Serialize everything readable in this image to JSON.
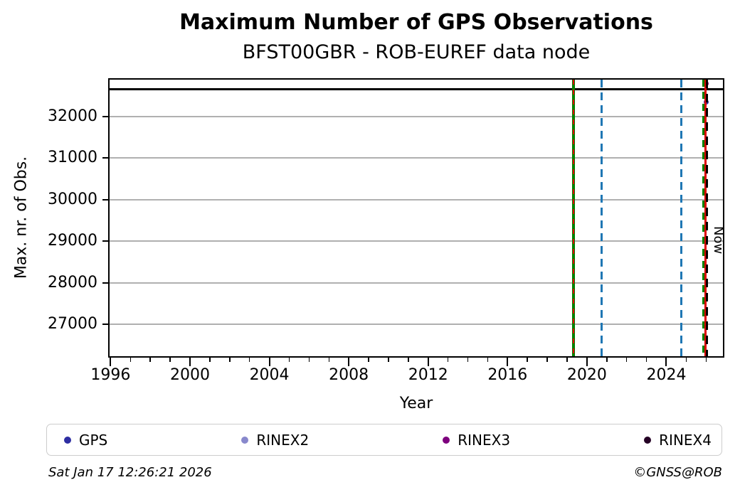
{
  "title": "Maximum Number of GPS Observations",
  "subtitle": "BFST00GBR - ROB-EUREF data node",
  "footer": {
    "timestamp": "Sat Jan 17 12:26:21 2026",
    "credit": "©GNSS@ROB"
  },
  "legend": {
    "items": [
      {
        "label": "GPS",
        "color": "#2e2ea2"
      },
      {
        "label": "RINEX2",
        "color": "#8888cc"
      },
      {
        "label": "RINEX3",
        "color": "#7d007d"
      },
      {
        "label": "RINEX4",
        "color": "#250025"
      }
    ]
  },
  "chart_data": {
    "type": "scatter",
    "title": "Maximum Number of GPS Observations",
    "subtitle": "BFST00GBR - ROB-EUREF data node",
    "xlabel": "Year",
    "ylabel": "Max. nr. of Obs.",
    "xlim": [
      1995.95,
      2026.85
    ],
    "ylim": [
      26240,
      32880
    ],
    "x_major_ticks": [
      1996,
      2000,
      2004,
      2008,
      2012,
      2016,
      2020,
      2024
    ],
    "x_minor_tick_step_years": 1,
    "y_ticks": [
      27000,
      28000,
      29000,
      30000,
      31000,
      32000
    ],
    "grid": "horizontal",
    "grid_color": "#b0b0b0",
    "legend_position": "bottom",
    "legend_entries": [
      "GPS",
      "RINEX2",
      "RINEX3",
      "RINEX4"
    ],
    "series": [
      {
        "name": "RINEX4",
        "style": "hline",
        "y": 32650,
        "color": "#000000",
        "note": "constant horizontal line spanning full x-range"
      },
      {
        "name": "RINEX3",
        "style": "point",
        "x": 2026.0,
        "y": 32780,
        "color": "#7d007d"
      },
      {
        "name": "GPS",
        "style": "point",
        "x": 2026.0,
        "y": 32350,
        "color": "#2e2ea2"
      }
    ],
    "vlines": [
      {
        "x": 2019.33,
        "color": "#008000",
        "dash": "solid",
        "width": 4
      },
      {
        "x": 2019.33,
        "color": "#dd0000",
        "dash": [
          7,
          7
        ],
        "width": 2.5
      },
      {
        "x": 2020.75,
        "color": "#1f77b4",
        "dash": [
          11,
          7
        ],
        "width": 3
      },
      {
        "x": 2024.77,
        "color": "#1f77b4",
        "dash": [
          11,
          7
        ],
        "width": 3
      },
      {
        "x": 2025.88,
        "color": "#008000",
        "dash": [
          10,
          7
        ],
        "width": 4
      },
      {
        "x": 2025.97,
        "color": "#dd0000",
        "dash": "solid",
        "width": 3
      },
      {
        "x": 2026.05,
        "color": "#000000",
        "dash": [
          12,
          8
        ],
        "width": 3.5,
        "label": "Now"
      }
    ]
  }
}
